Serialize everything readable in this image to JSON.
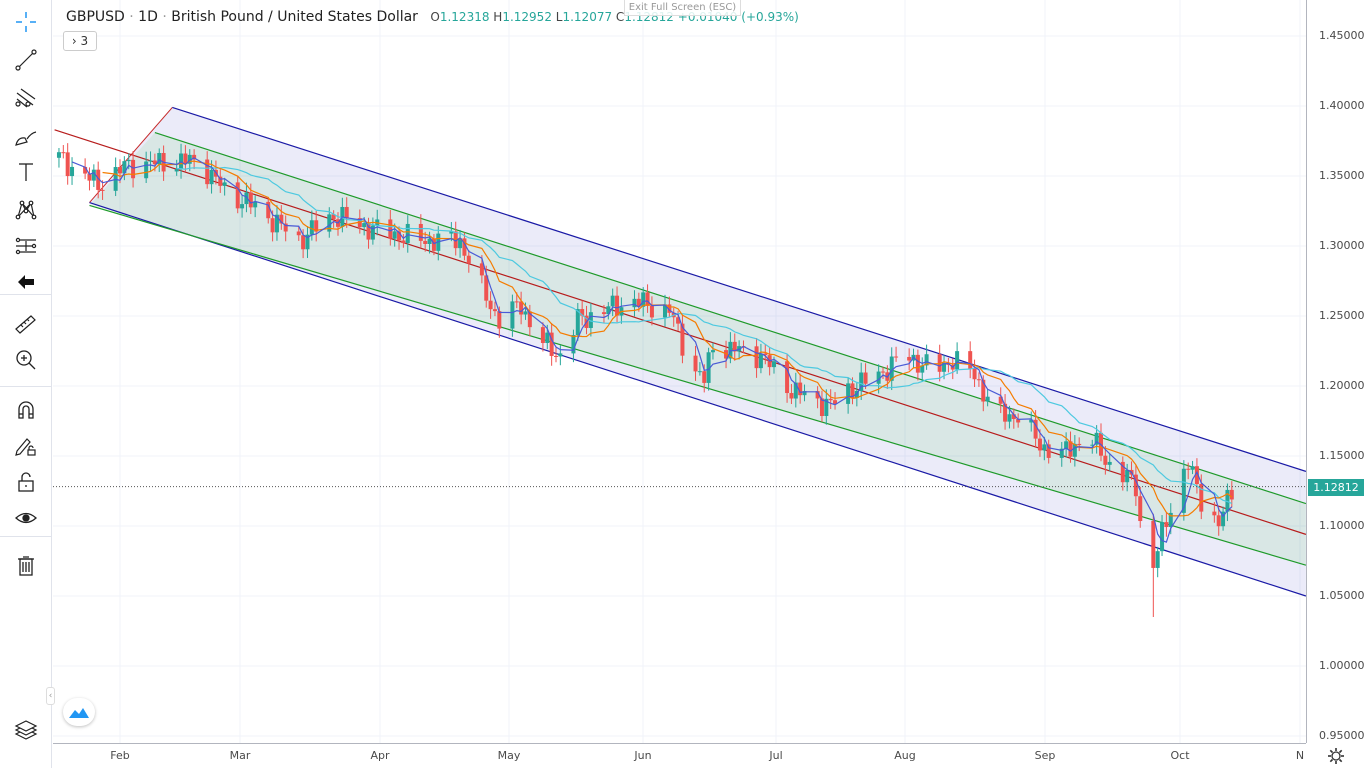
{
  "header": {
    "symbol": "GBPUSD",
    "interval": "1D",
    "description": "British Pound / United States Dollar",
    "sep": "·",
    "open_label": "O",
    "open": "1.12318",
    "high_label": "H",
    "high": "1.12952",
    "low_label": "L",
    "low": "1.12077",
    "close_label": "C",
    "close": "1.12812",
    "change": "+0.01040 (+0.93%)"
  },
  "indicators_toggle": {
    "label": "› 3"
  },
  "exit_fullscreen": "Exit Full Screen (ESC)",
  "toolbar": {
    "items": [
      "crosshair-icon",
      "trend-line-icon",
      "pitchfork-icon",
      "brush-icon",
      "text-icon",
      "pattern-icon",
      "prediction-icon",
      "back-arrow-icon",
      "ruler-icon",
      "zoom-in-icon",
      "magnet-icon",
      "lock-drawing-icon",
      "unlock-icon",
      "eye-icon",
      "trash-icon",
      "layers-icon"
    ]
  },
  "price_axis": {
    "labels": [
      "1.45000",
      "1.40000",
      "1.35000",
      "1.30000",
      "1.25000",
      "1.20000",
      "1.15000",
      "1.10000",
      "1.05000",
      "1.00000",
      "0.95000"
    ],
    "current_price": "1.12812"
  },
  "time_axis": {
    "labels": [
      "Feb",
      "Mar",
      "Apr",
      "May",
      "Jun",
      "Jul",
      "Aug",
      "Sep",
      "Oct",
      "N"
    ]
  },
  "colors": {
    "up": "#26a69a",
    "down": "#ef5350",
    "ma_fast": "#4a5bd6",
    "ma_mid": "#f57c00",
    "ma_slow": "#4dc9e0",
    "channel_outer": "#1a1aa6",
    "channel_inner": "#1e9a2a",
    "channel_mid": "#b71c1c"
  },
  "chart_data": {
    "type": "candlestick",
    "symbol": "GBPUSD",
    "ylim": [
      0.95,
      1.45
    ],
    "approx_closes": [
      [
        "2022-01-18",
        1.363
      ],
      [
        "2022-01-27",
        1.344
      ],
      [
        "2022-02-03",
        1.358
      ],
      [
        "2022-02-19",
        1.361
      ],
      [
        "2022-02-25",
        1.34
      ],
      [
        "2022-03-05",
        1.326
      ],
      [
        "2022-03-14",
        1.304
      ],
      [
        "2022-03-22",
        1.322
      ],
      [
        "2022-03-30",
        1.313
      ],
      [
        "2022-04-11",
        1.304
      ],
      [
        "2022-04-20",
        1.304
      ],
      [
        "2022-04-25",
        1.269
      ],
      [
        "2022-04-29",
        1.247
      ],
      [
        "2022-05-04",
        1.258
      ],
      [
        "2022-05-08",
        1.233
      ],
      [
        "2022-05-13",
        1.222
      ],
      [
        "2022-05-17",
        1.247
      ],
      [
        "2022-05-29",
        1.261
      ],
      [
        "2022-06-07",
        1.254
      ],
      [
        "2022-06-12",
        1.215
      ],
      [
        "2022-06-15",
        1.204
      ],
      [
        "2022-06-17",
        1.229
      ],
      [
        "2022-06-28",
        1.222
      ],
      [
        "2022-07-05",
        1.197
      ],
      [
        "2022-07-14",
        1.186
      ],
      [
        "2022-07-18",
        1.197
      ],
      [
        "2022-07-25",
        1.208
      ],
      [
        "2022-07-31",
        1.222
      ],
      [
        "2022-08-07",
        1.211
      ],
      [
        "2022-08-11",
        1.219
      ],
      [
        "2022-08-16",
        1.208
      ],
      [
        "2022-08-21",
        1.179
      ],
      [
        "2022-08-26",
        1.179
      ],
      [
        "2022-08-31",
        1.158
      ],
      [
        "2022-09-05",
        1.151
      ],
      [
        "2022-09-11",
        1.165
      ],
      [
        "2022-09-16",
        1.144
      ],
      [
        "2022-09-22",
        1.129
      ],
      [
        "2022-09-24",
        1.076
      ],
      [
        "2022-09-26",
        1.072
      ],
      [
        "2022-09-29",
        1.104
      ],
      [
        "2022-10-02",
        1.133
      ],
      [
        "2022-10-04",
        1.144
      ],
      [
        "2022-10-07",
        1.119
      ],
      [
        "2022-10-11",
        1.101
      ],
      [
        "2022-10-14",
        1.126
      ],
      [
        "2022-10-16",
        1.128
      ]
    ],
    "channel": {
      "mid": [
        [
          "2022-01-17",
          1.383
        ],
        [
          "2022-10-31",
          1.094
        ]
      ],
      "upper_outer": [
        [
          "2022-02-13",
          1.399
        ],
        [
          "2022-10-31",
          1.139
        ]
      ],
      "upper_inner": [
        [
          "2022-02-09",
          1.381
        ],
        [
          "2022-10-31",
          1.116
        ]
      ],
      "lower_inner": [
        [
          "2022-01-25",
          1.329
        ],
        [
          "2022-10-31",
          1.072
        ]
      ],
      "lower_outer": [
        [
          "2022-01-25",
          1.331
        ],
        [
          "2022-10-31",
          1.05
        ]
      ]
    }
  }
}
